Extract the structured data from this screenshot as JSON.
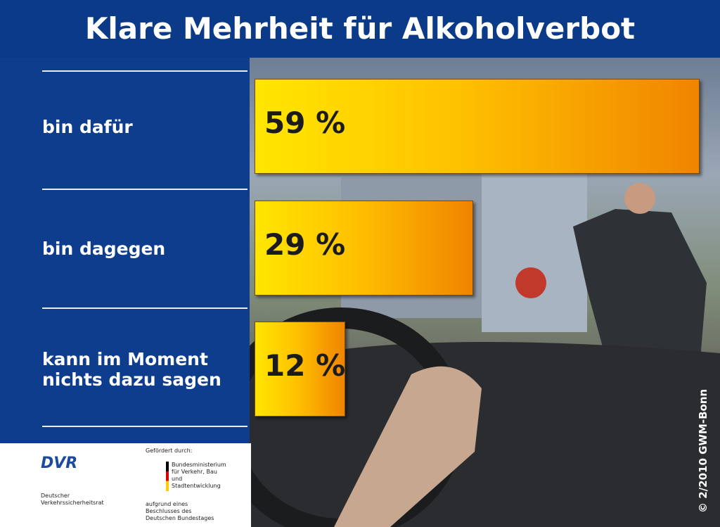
{
  "chart_data": {
    "type": "bar",
    "title": "Klare Mehrheit für Alkoholverbot",
    "categories": [
      "bin dafür",
      "bin dagegen",
      "kann im Moment nichts dazu sagen"
    ],
    "values": [
      59,
      29,
      12
    ],
    "value_labels": [
      "59 %",
      "29 %",
      "12 %"
    ],
    "copyright": "© 2/2010 GWM-Bonn"
  },
  "footer": {
    "logo": "DVR",
    "organization": "Deutscher Verkehrssicherheitsrat",
    "funded_by": "Gefördert durch:",
    "ministry": "Bundesministerium für Verkehr, Bau und Stadtentwicklung",
    "resolution": "aufgrund eines Beschlusses des Deutschen Bundestages"
  }
}
